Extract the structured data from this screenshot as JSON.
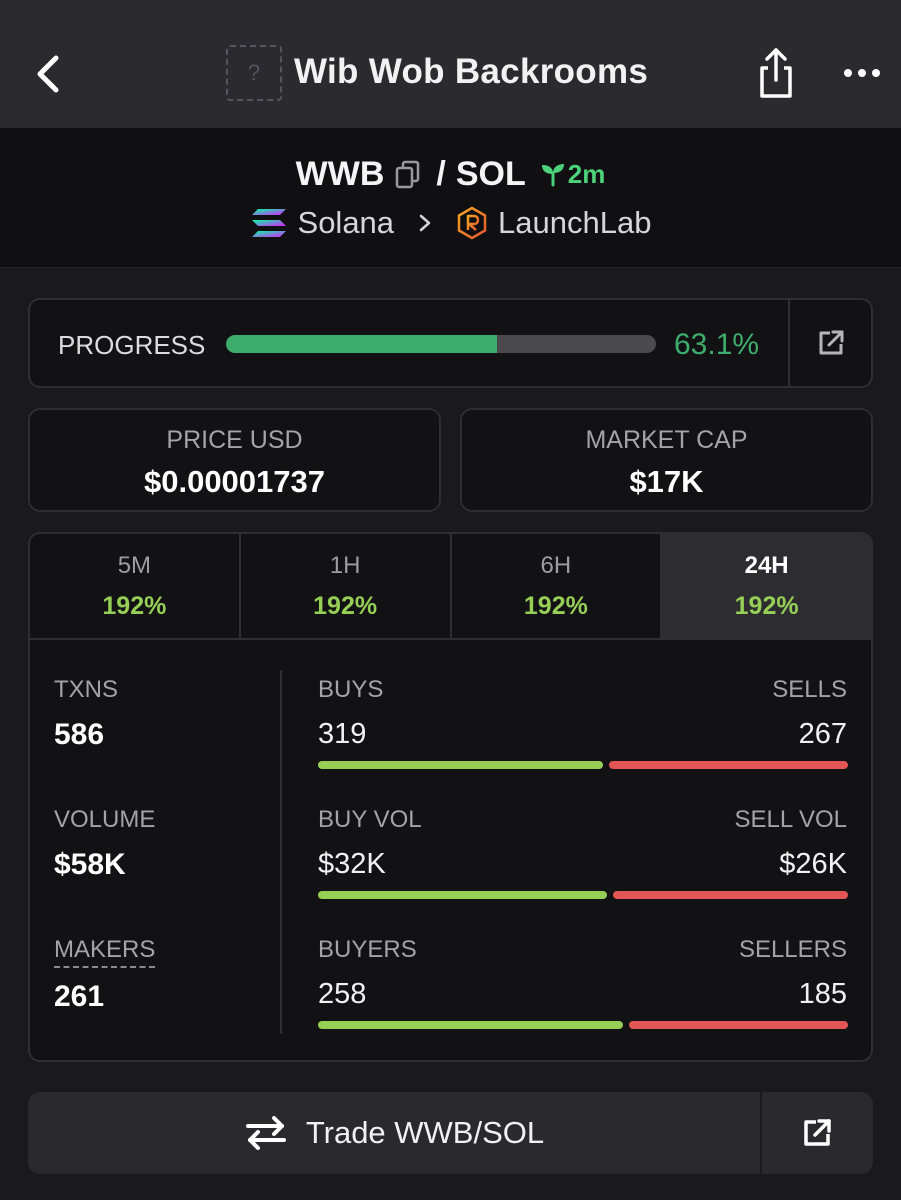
{
  "header": {
    "title": "Wib Wob Backrooms",
    "token_placeholder": "?",
    "icons": {
      "back": "chevron-left-icon",
      "share": "share-icon",
      "more": "more-horizontal-icon"
    }
  },
  "pair": {
    "base": "WWB",
    "separator": "/",
    "quote": "SOL",
    "age": "2m",
    "chain": "Solana",
    "dex": "LaunchLab"
  },
  "progress": {
    "label": "PROGRESS",
    "value": 0.631,
    "percent_text": "63.1%",
    "color": "#3ead6b"
  },
  "price": {
    "label": "PRICE USD",
    "value": "$0.00001737"
  },
  "market_cap": {
    "label": "MARKET CAP",
    "value": "$17K"
  },
  "timeframes": [
    {
      "label": "5M",
      "change": "192%"
    },
    {
      "label": "1H",
      "change": "192%"
    },
    {
      "label": "6H",
      "change": "192%"
    },
    {
      "label": "24H",
      "change": "192%",
      "active": true
    }
  ],
  "stats": {
    "txns": {
      "label": "TXNS",
      "value": "586"
    },
    "volume": {
      "label": "VOLUME",
      "value": "$58K"
    },
    "makers": {
      "label": "MAKERS",
      "value": "261"
    },
    "buys": {
      "label": "BUYS",
      "value": "319",
      "ratio": 0.544
    },
    "sells": {
      "label": "SELLS",
      "value": "267"
    },
    "buy_vol": {
      "label": "BUY VOL",
      "value": "$32K",
      "ratio": 0.552
    },
    "sell_vol": {
      "label": "SELL VOL",
      "value": "$26K"
    },
    "buyers": {
      "label": "BUYERS",
      "value": "258",
      "ratio": 0.582
    },
    "sellers": {
      "label": "SELLERS",
      "value": "185"
    }
  },
  "trade": {
    "label": "Trade WWB/SOL"
  },
  "colors": {
    "buy": "#97cf56",
    "sell": "#e35656",
    "up": "#97cf56"
  }
}
